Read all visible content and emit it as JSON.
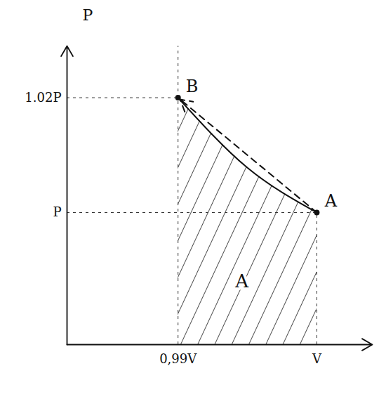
{
  "chart_data": {
    "type": "line",
    "y_label": "P",
    "xlim": [
      0.982,
      1.004
    ],
    "ylim": [
      0.977,
      1.029
    ],
    "xticks": [
      {
        "value": 0.99,
        "label": "0,99V"
      },
      {
        "value": 1,
        "label": "V"
      }
    ],
    "yticks": [
      {
        "value": 1,
        "label": "P"
      },
      {
        "value": 1.02,
        "label": "1.02P"
      }
    ],
    "series": [
      {
        "type": "area",
        "line_style": "solid",
        "x": [
          0.99,
          0.9925,
          0.995,
          0.9975,
          1
        ],
        "values": [
          1.02,
          1.0135,
          1.0078,
          1.0035,
          1
        ]
      },
      {
        "type": "arrow",
        "line_style": "dashed",
        "x": [
          1,
          0.99
        ],
        "values": [
          1,
          1.02
        ]
      }
    ],
    "points": [
      {
        "label": "A",
        "x": 1,
        "y": 1
      },
      {
        "label": "B",
        "x": 0.99,
        "y": 1.02
      }
    ],
    "annotations": [
      {
        "text": "A",
        "x": 0.9946,
        "y": 0.988
      }
    ],
    "grid": false
  }
}
